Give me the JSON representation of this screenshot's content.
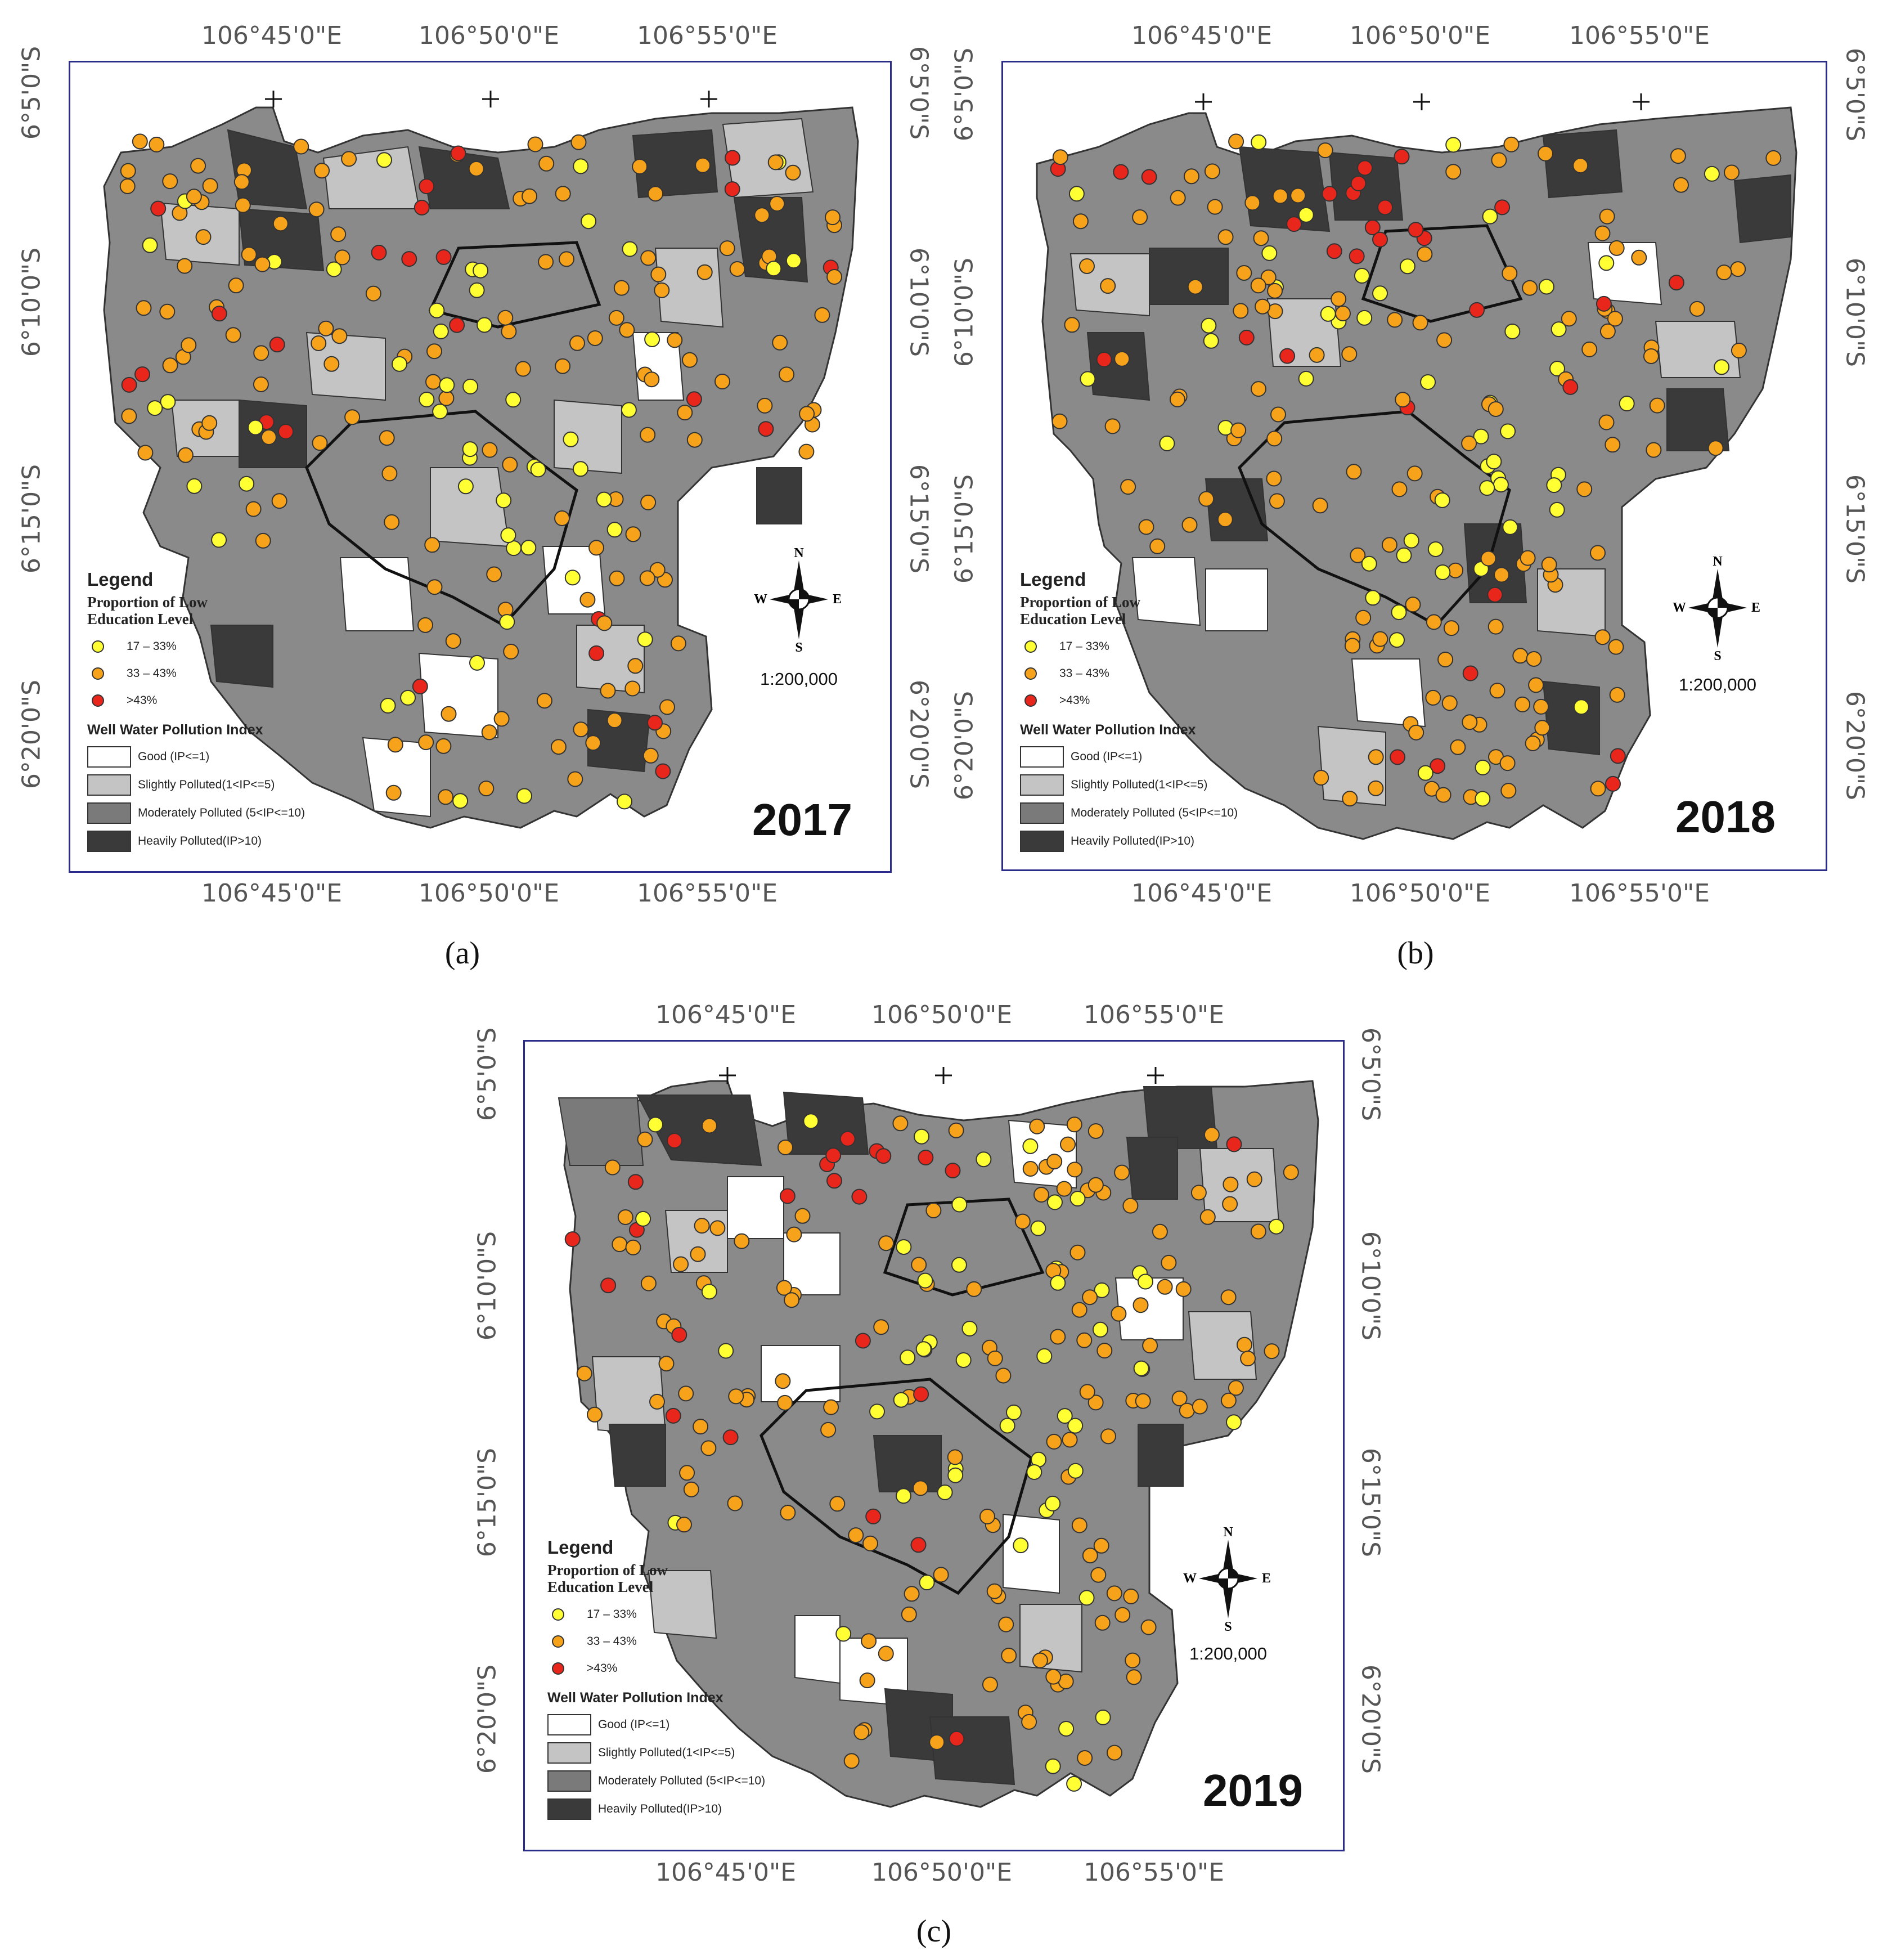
{
  "figure": {
    "panels": [
      {
        "id": "a",
        "caption": "(a)",
        "year": "2017",
        "scale": "1:200,000",
        "compass": {
          "n": "N",
          "s": "S",
          "e": "E",
          "w": "W"
        },
        "lon_labels": [
          "106°45'0\"E",
          "106°50'0\"E",
          "106°55'0\"E"
        ],
        "lat_labels": [
          "6°5'0\"S",
          "6°10'0\"S",
          "6°15'0\"S",
          "6°20'0\"S"
        ]
      },
      {
        "id": "b",
        "caption": "(b)",
        "year": "2018",
        "scale": "1:200,000",
        "compass": {
          "n": "N",
          "s": "S",
          "e": "E",
          "w": "W"
        },
        "lon_labels": [
          "106°45'0\"E",
          "106°50'0\"E",
          "106°55'0\"E"
        ],
        "lat_labels": [
          "6°5'0\"S",
          "6°10'0\"S",
          "6°15'0\"S",
          "6°20'0\"S"
        ]
      },
      {
        "id": "c",
        "caption": "(c)",
        "year": "2019",
        "scale": "1:200,000",
        "compass": {
          "n": "N",
          "s": "S",
          "e": "E",
          "w": "W"
        },
        "lon_labels": [
          "106°45'0\"E",
          "106°50'0\"E",
          "106°55'0\"E"
        ],
        "lat_labels": [
          "6°5'0\"S",
          "6°10'0\"S",
          "6°15'0\"S",
          "6°20'0\"S"
        ]
      }
    ],
    "legend": {
      "title": "Legend",
      "education_title_line1": "Proportion of Low",
      "education_title_line2": "Education Level",
      "education_classes": [
        {
          "label": "17 – 33%",
          "color": "#ffff33"
        },
        {
          "label": "33 – 43%",
          "color": "#f7a21b"
        },
        {
          "label": ">43%",
          "color": "#e8261c"
        }
      ],
      "pollution_title": "Well Water Pollution Index",
      "pollution_classes": [
        {
          "label": "Good (IP<=1)",
          "color": "#ffffff"
        },
        {
          "label": "Slightly Polluted(1<IP<=5)",
          "color": "#c4c4c4"
        },
        {
          "label": "Moderately Polluted (5<IP<=10)",
          "color": "#7a7a7a"
        },
        {
          "label": "Heavily Polluted(IP>10)",
          "color": "#3a3a3a"
        }
      ]
    }
  }
}
